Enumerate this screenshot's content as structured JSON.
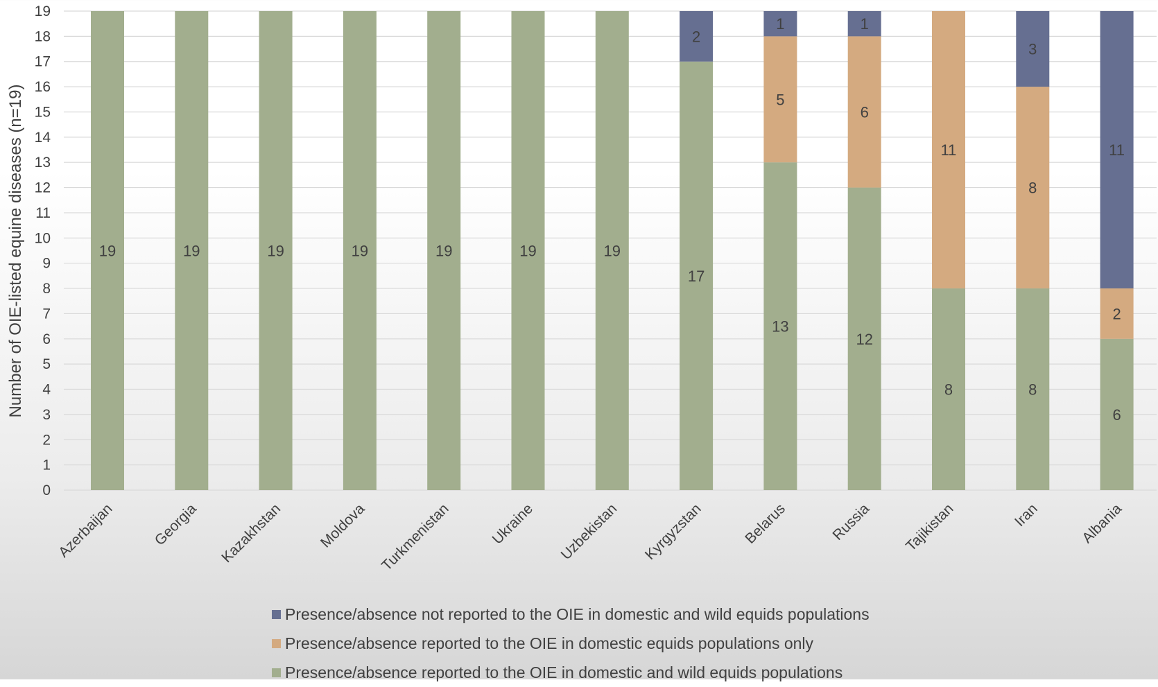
{
  "chart_data": {
    "type": "bar",
    "stacked": true,
    "categories": [
      "Azerbaijan",
      "Georgia",
      "Kazakhstan",
      "Moldova",
      "Turkmenistan",
      "Ukraine",
      "Uzbekistan",
      "Kyrgyzstan",
      "Belarus",
      "Russia",
      "Tajikistan",
      "Iran",
      "Albania"
    ],
    "series": [
      {
        "name": "Presence/absence reported to the OIE in domestic and wild equids populations",
        "color": "#a2ae8e",
        "values": [
          19,
          19,
          19,
          19,
          19,
          19,
          19,
          17,
          13,
          12,
          8,
          8,
          6
        ]
      },
      {
        "name": "Presence/absence reported to the OIE in domestic equids populations only",
        "color": "#d4aa80",
        "values": [
          0,
          0,
          0,
          0,
          0,
          0,
          0,
          0,
          5,
          6,
          11,
          8,
          2
        ]
      },
      {
        "name": "Presence/absence not reported to the OIE in domestic and wild equids populations",
        "color": "#666f91",
        "values": [
          0,
          0,
          0,
          0,
          0,
          0,
          0,
          2,
          1,
          1,
          0,
          3,
          11
        ]
      }
    ],
    "ylabel": "Number of OIE-listed equine diseases (n=19)",
    "ylim": [
      0,
      19
    ],
    "yticks": [
      0,
      1,
      2,
      3,
      4,
      5,
      6,
      7,
      8,
      9,
      10,
      11,
      12,
      13,
      14,
      15,
      16,
      17,
      18,
      19
    ],
    "grid": true,
    "legend_position": "bottom",
    "legend_order": [
      2,
      1,
      0
    ]
  }
}
